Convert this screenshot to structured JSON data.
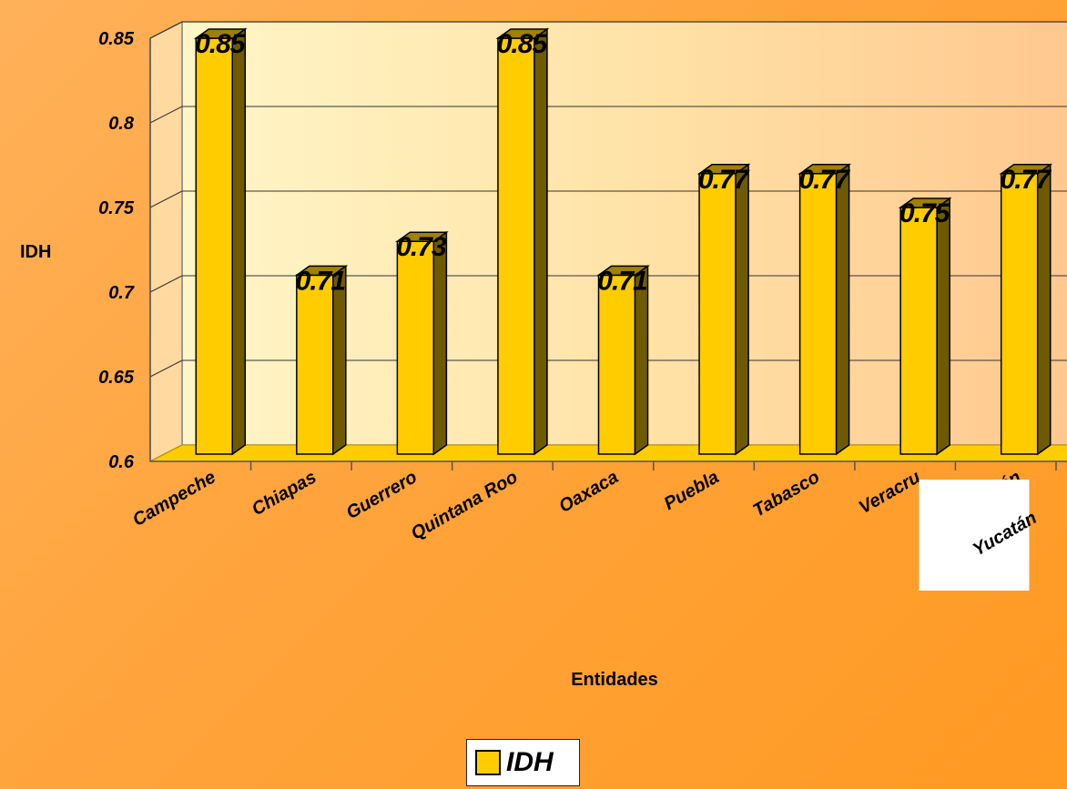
{
  "chart_data": {
    "type": "bar",
    "title": "",
    "xlabel": "Entidades",
    "ylabel": "IDH",
    "ylim": [
      0.6,
      0.85
    ],
    "yticks": [
      "0.6",
      "0.65",
      "0.7",
      "0.75",
      "0.8",
      "0.85"
    ],
    "categories": [
      "Campeche",
      "Chiapas",
      "Guerrero",
      "Quintana Roo",
      "Oaxaca",
      "Puebla",
      "Tabasco",
      "Veracruz",
      "Yucatán"
    ],
    "category_labels": [
      "Campeche",
      "Chiapas",
      "Guerrero",
      "Quintana Roo",
      "Oaxaca",
      "Puebla",
      "Tabasco",
      "Veracru",
      "Yucatán"
    ],
    "series": [
      {
        "name": "IDH",
        "values": [
          0.85,
          0.71,
          0.73,
          0.85,
          0.71,
          0.77,
          0.77,
          0.75,
          0.77
        ]
      }
    ],
    "data_labels": [
      "0.85",
      "0.71",
      "0.73",
      "0.85",
      "0.71",
      "0.77",
      "0.77",
      "0.75",
      "0.77"
    ],
    "grid": true,
    "legend": "bottom-center",
    "bar_color": "#ffcc00",
    "bar_side_color": "#6e5a00",
    "floor_color": "#ffcc00"
  },
  "legend": {
    "label": "IDH"
  }
}
